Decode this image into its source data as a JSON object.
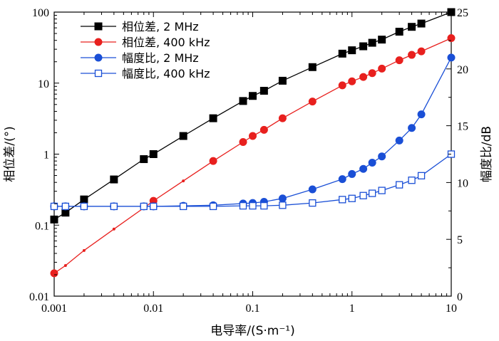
{
  "chart_data": {
    "type": "line",
    "xlabel": "电导率/(S·m⁻¹)",
    "ylabel_left": "相位差/(°)",
    "ylabel_right": "幅度比/dB",
    "x_scale": "log",
    "y_left_scale": "log",
    "y_right_scale": "linear",
    "xlim": [
      0.001,
      10
    ],
    "ylim_left": [
      0.01,
      100
    ],
    "ylim_right": [
      0,
      25
    ],
    "x_ticks": [
      "0.001",
      "0.01",
      "0.1",
      "1",
      "10"
    ],
    "y_left_ticks": [
      "0.01",
      "0.1",
      "1",
      "10",
      "100"
    ],
    "y_right_ticks": [
      "0",
      "5",
      "10",
      "15",
      "20",
      "25"
    ],
    "legend_position": "top-left",
    "grid": false,
    "series": [
      {
        "name": "相位差, 2 MHz",
        "axis": "left",
        "color": "#000000",
        "marker": "filled-square",
        "x": [
          0.001,
          0.0013,
          0.002,
          0.004,
          0.008,
          0.01,
          0.02,
          0.04,
          0.08,
          0.1,
          0.13,
          0.2,
          0.4,
          0.8,
          1,
          1.3,
          1.6,
          2,
          3,
          4,
          5,
          10
        ],
        "y": [
          0.12,
          0.15,
          0.23,
          0.44,
          0.85,
          1.0,
          1.8,
          3.2,
          5.6,
          6.6,
          7.8,
          10.8,
          16.8,
          26,
          29,
          33,
          37,
          41,
          53,
          62,
          69,
          100
        ]
      },
      {
        "name": "相位差, 400 kHz",
        "axis": "left",
        "color": "#e8201e",
        "marker": "filled-circle",
        "x": [
          0.001,
          0.0013,
          0.002,
          0.004,
          0.008,
          0.01,
          0.02,
          0.04,
          0.08,
          0.1,
          0.13,
          0.2,
          0.4,
          0.8,
          1,
          1.3,
          1.6,
          2,
          3,
          4,
          5,
          10
        ],
        "y": [
          0.021,
          0.027,
          0.044,
          0.088,
          0.175,
          0.22,
          0.42,
          0.8,
          1.48,
          1.8,
          2.2,
          3.2,
          5.5,
          9.3,
          10.6,
          12.2,
          13.8,
          16,
          21,
          25,
          28,
          43
        ]
      },
      {
        "name": "幅度比, 2 MHz",
        "axis": "right",
        "color": "#1a4fd6",
        "marker": "filled-circle",
        "x": [
          0.001,
          0.0013,
          0.002,
          0.004,
          0.008,
          0.01,
          0.02,
          0.04,
          0.08,
          0.1,
          0.13,
          0.2,
          0.4,
          0.8,
          1,
          1.3,
          1.6,
          2,
          3,
          4,
          5,
          10
        ],
        "y": [
          7.9,
          7.9,
          7.9,
          7.9,
          7.9,
          7.9,
          7.95,
          8.0,
          8.15,
          8.2,
          8.3,
          8.6,
          9.4,
          10.3,
          10.75,
          11.2,
          11.75,
          12.3,
          13.7,
          14.8,
          16.0,
          21.0
        ]
      },
      {
        "name": "幅度比, 400 kHz",
        "axis": "right",
        "color": "#1a4fd6",
        "marker": "open-square",
        "x": [
          0.001,
          0.0013,
          0.002,
          0.004,
          0.008,
          0.01,
          0.02,
          0.04,
          0.08,
          0.1,
          0.13,
          0.2,
          0.4,
          0.8,
          1,
          1.3,
          1.6,
          2,
          3,
          4,
          5,
          10
        ],
        "y": [
          7.9,
          7.9,
          7.9,
          7.9,
          7.9,
          7.9,
          7.9,
          7.9,
          7.95,
          7.95,
          7.95,
          8.0,
          8.2,
          8.5,
          8.6,
          8.85,
          9.05,
          9.3,
          9.8,
          10.2,
          10.6,
          12.5
        ]
      }
    ]
  }
}
